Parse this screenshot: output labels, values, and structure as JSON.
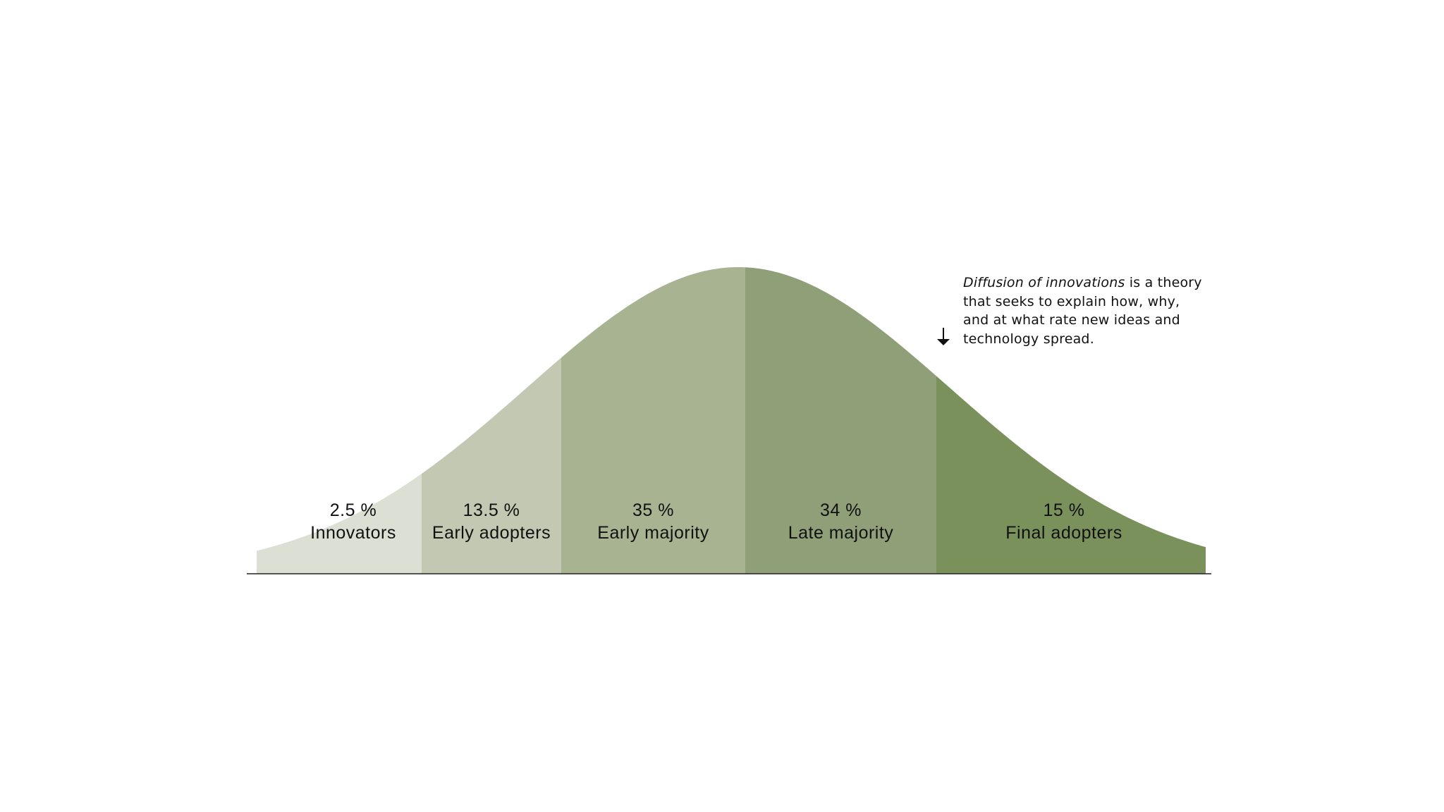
{
  "chart_data": {
    "type": "area",
    "title": "",
    "xlabel": "",
    "ylabel": "",
    "grid": false,
    "series": [
      {
        "name": "Innovators",
        "percent_label": "2.5 %",
        "value": 2.5,
        "color": "#dcdfd4"
      },
      {
        "name": "Early adopters",
        "percent_label": "13.5 %",
        "value": 13.5,
        "color": "#c3c8b2"
      },
      {
        "name": "Early majority",
        "percent_label": "35 %",
        "value": 35,
        "color": "#a7b391"
      },
      {
        "name": "Late majority",
        "percent_label": "34 %",
        "value": 34,
        "color": "#8f9f78"
      },
      {
        "name": "Final adopters",
        "percent_label": "15 %",
        "value": 15,
        "color": "#7a915c"
      }
    ]
  },
  "annotation": {
    "italic_lead": "Diffusion of innovations",
    "rest": " is a theory that seeks to explain how, why, and at what rate new ideas and technology spread."
  },
  "colors": {
    "baseline": "#222222",
    "text": "#111111"
  }
}
